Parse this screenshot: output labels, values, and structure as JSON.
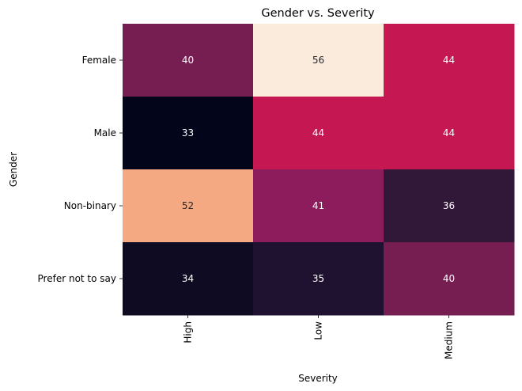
{
  "chart_data": {
    "type": "heatmap",
    "title": "Gender vs. Severity",
    "xlabel": "Severity",
    "ylabel": "Gender",
    "x_categories": [
      "High",
      "Low",
      "Medium"
    ],
    "y_categories": [
      "Female",
      "Male",
      "Non-binary",
      "Prefer not to say"
    ],
    "values": [
      [
        40,
        56,
        44
      ],
      [
        33,
        44,
        44
      ],
      [
        52,
        41,
        36
      ],
      [
        34,
        35,
        40
      ]
    ],
    "cell_labels": [
      [
        "40",
        "56",
        "44"
      ],
      [
        "33",
        "44",
        "44"
      ],
      [
        "52",
        "41",
        "36"
      ],
      [
        "34",
        "35",
        "40"
      ]
    ],
    "cell_colors": [
      [
        "#761e52",
        "#fbebdd",
        "#c51852"
      ],
      [
        "#03051a",
        "#c51852",
        "#c51852"
      ],
      [
        "#f4a982",
        "#8c1c5b",
        "#311738"
      ],
      [
        "#0e0b22",
        "#1f1230",
        "#761e52"
      ]
    ],
    "cell_label_colors": [
      [
        "#ffffff",
        "#262626",
        "#ffffff"
      ],
      [
        "#ffffff",
        "#ffffff",
        "#ffffff"
      ],
      [
        "#262626",
        "#ffffff",
        "#ffffff"
      ],
      [
        "#ffffff",
        "#ffffff",
        "#ffffff"
      ]
    ],
    "colormap": "rocket",
    "colorbar": false,
    "grid": false
  }
}
